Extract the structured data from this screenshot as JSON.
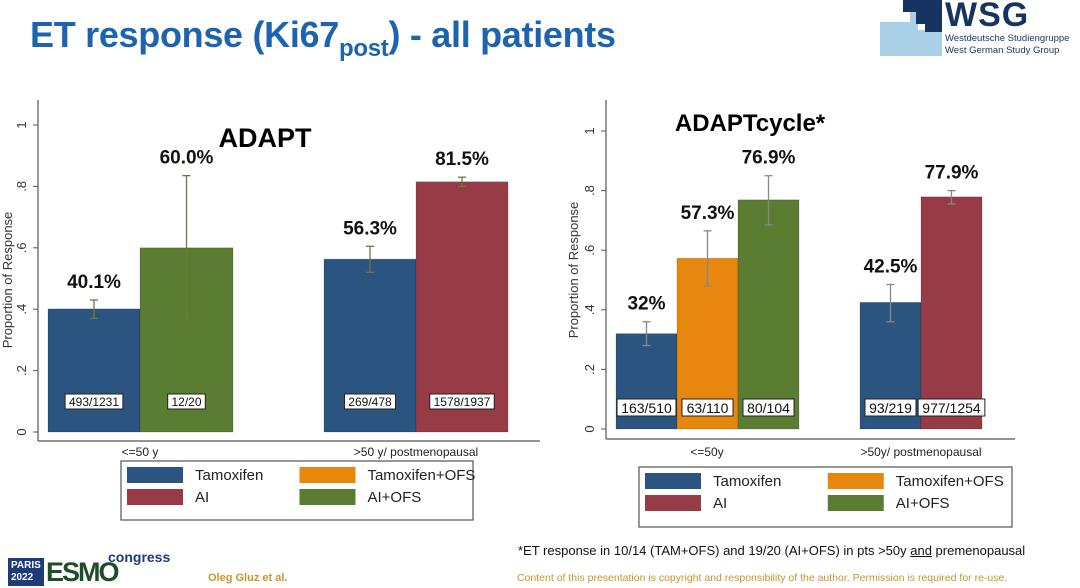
{
  "slide": {
    "title_main": "ET response (Ki67",
    "title_sub": "post",
    "title_end": ") - all patients",
    "logo": {
      "name": "WSG",
      "line1": "Westdeutsche Studiengruppe",
      "line2": "West German Study Group"
    },
    "footnote_pre": "*ET response in 10/14 (TAM+OFS) and 19/20 (AI+OFS) in pts >50y ",
    "footnote_underlined": "and",
    "footnote_post": " premenopausal",
    "author": "Oleg Gluz et al.",
    "copyright": "Content of this presentation is copyright and responsibility of the author. Permission is required for re-use.",
    "congress_logo": {
      "city": "PARIS",
      "year": "2022",
      "brand": "ESMO",
      "word": "congress"
    }
  },
  "colors": {
    "Tamoxifen": "#2b5580",
    "Tamoxifen+OFS": "#e8870e",
    "AI": "#973b47",
    "AI+OFS": "#5b7d31",
    "title": "#1c63b0"
  },
  "chart_data": [
    {
      "type": "bar",
      "title": "ADAPT",
      "ylabel": "Proportion of Response",
      "ylim": [
        0,
        1
      ],
      "yticks": [
        "0",
        ".2",
        ".4",
        ".6",
        ".8",
        "1"
      ],
      "categories": [
        "<=50 y",
        ">50 y/ postmenopausal"
      ],
      "legend": [
        "Tamoxifen",
        "Tamoxifen+OFS",
        "AI",
        "AI+OFS"
      ],
      "legend_position": "bottom",
      "groups": [
        {
          "category": "<=50 y",
          "bars": [
            {
              "series": "Tamoxifen",
              "value": 0.401,
              "label": "40.1%",
              "count": "493/1231",
              "ci": [
                0.37,
                0.43
              ]
            },
            {
              "series": "AI+OFS",
              "value": 0.6,
              "label": "60.0%",
              "count": "12/20",
              "ci": [
                0.365,
                0.835
              ]
            }
          ]
        },
        {
          "category": ">50 y/ postmenopausal",
          "bars": [
            {
              "series": "Tamoxifen",
              "value": 0.563,
              "label": "56.3%",
              "count": "269/478",
              "ci": [
                0.52,
                0.605
              ]
            },
            {
              "series": "AI",
              "value": 0.815,
              "label": "81.5%",
              "count": "1578/1937",
              "ci": [
                0.8,
                0.83
              ]
            }
          ]
        }
      ]
    },
    {
      "type": "bar",
      "title": "ADAPTcycle*",
      "ylabel": "Proportion of Response",
      "ylim": [
        0,
        1
      ],
      "yticks": [
        "0",
        ".2",
        ".4",
        ".6",
        ".8",
        "1"
      ],
      "categories": [
        "<=50y",
        ">50y/ postmenopausal"
      ],
      "legend": [
        "Tamoxifen",
        "Tamoxifen+OFS",
        "AI",
        "AI+OFS"
      ],
      "legend_position": "bottom",
      "groups": [
        {
          "category": "<=50y",
          "bars": [
            {
              "series": "Tamoxifen",
              "value": 0.32,
              "label": "32%",
              "count": "163/510",
              "ci": [
                0.28,
                0.36
              ]
            },
            {
              "series": "Tamoxifen+OFS",
              "value": 0.573,
              "label": "57.3%",
              "count": "63/110",
              "ci": [
                0.48,
                0.665
              ]
            },
            {
              "series": "AI+OFS",
              "value": 0.769,
              "label": "76.9%",
              "count": "80/104",
              "ci": [
                0.685,
                0.85
              ]
            }
          ]
        },
        {
          "category": ">50y/ postmenopausal",
          "bars": [
            {
              "series": "Tamoxifen",
              "value": 0.425,
              "label": "42.5%",
              "count": "93/219",
              "ci": [
                0.36,
                0.485
              ]
            },
            {
              "series": "AI",
              "value": 0.779,
              "label": "77.9%",
              "count": "977/1254",
              "ci": [
                0.755,
                0.8
              ]
            }
          ]
        }
      ]
    }
  ]
}
